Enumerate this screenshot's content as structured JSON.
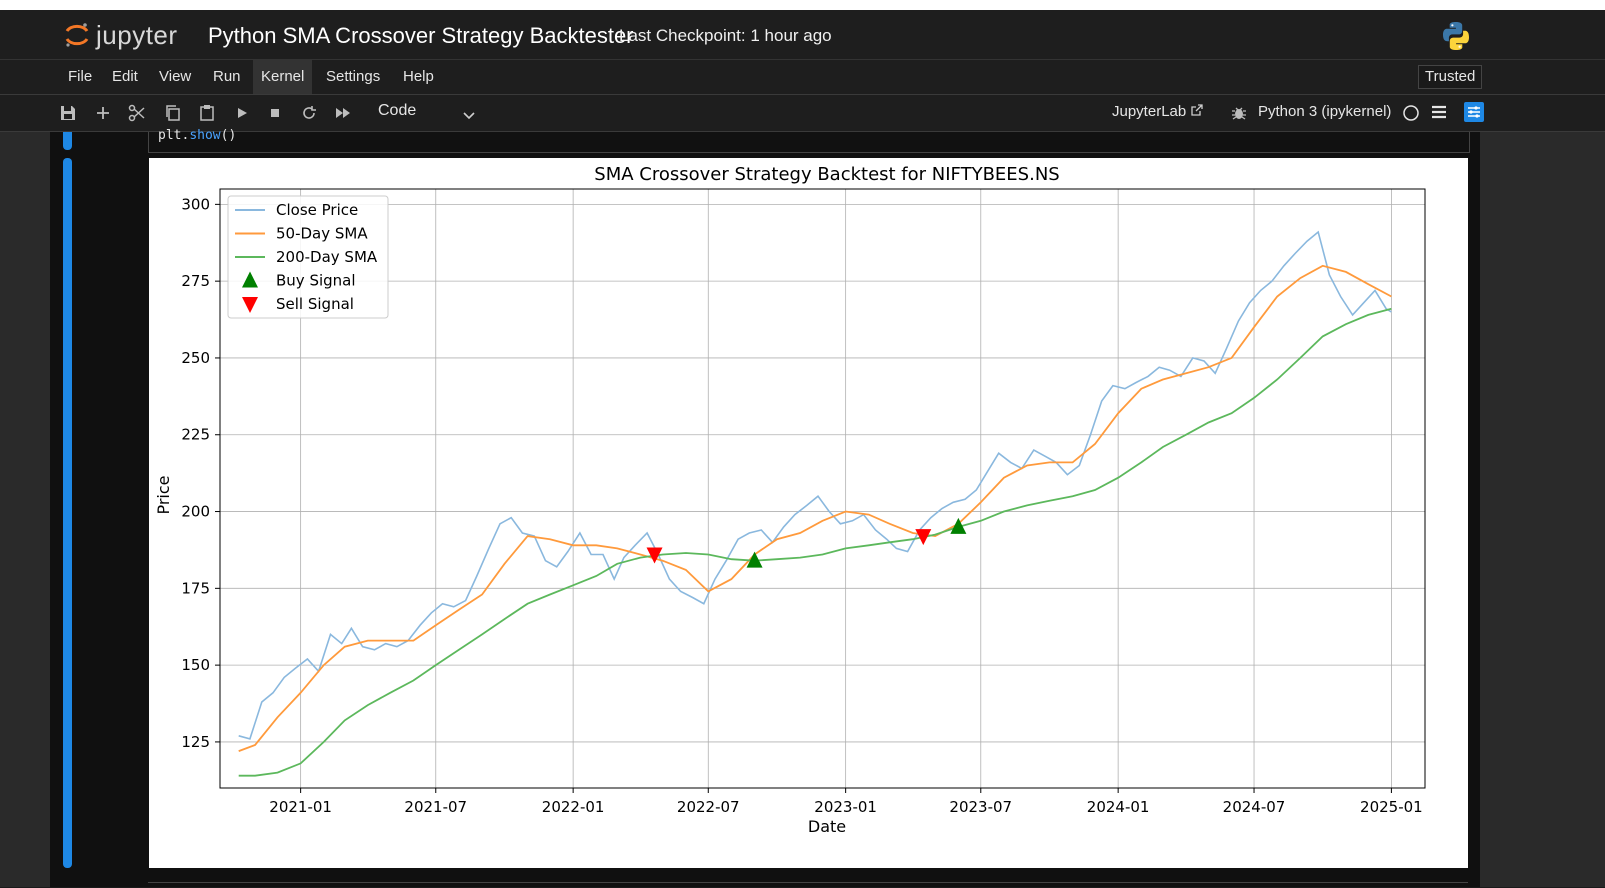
{
  "header": {
    "logo_text": "jupyter",
    "title": "Python SMA Crossover Strategy Backtester",
    "checkpoint": "Last Checkpoint: 1 hour ago"
  },
  "menu": {
    "items": [
      "File",
      "Edit",
      "View",
      "Run",
      "Kernel",
      "Settings",
      "Help"
    ],
    "active": "Kernel",
    "trusted": "Trusted"
  },
  "toolbar": {
    "icons": [
      "save-icon",
      "add-cell-icon",
      "cut-icon",
      "copy-icon",
      "paste-icon",
      "run-icon",
      "stop-icon",
      "restart-icon",
      "fast-forward-icon"
    ],
    "cell_type": "Code",
    "jupyterlab_label": "JupyterLab",
    "kernel_label": "Python 3 (ipykernel)"
  },
  "cell": {
    "code_obj": "plt.",
    "code_fn": "show",
    "code_tail": "()"
  },
  "chart_data": {
    "type": "line",
    "title": "SMA Crossover Strategy Backtest for NIFTYBEES.NS",
    "xlabel": "Date",
    "ylabel": "Price",
    "ylim": [
      110,
      305
    ],
    "yticks": [
      125,
      150,
      175,
      200,
      225,
      250,
      275,
      300
    ],
    "xticks": [
      "2021-01",
      "2021-07",
      "2022-01",
      "2022-07",
      "2023-01",
      "2023-07",
      "2024-01",
      "2024-07",
      "2025-01"
    ],
    "xlim": [
      "2020-09-15",
      "2025-02-15"
    ],
    "grid": true,
    "legend_position": "top-left",
    "colors": {
      "close": "#8ab8de",
      "sma50": "#ff9a3c",
      "sma200": "#5cb85c",
      "buy": "#008000",
      "sell": "#ff0000"
    },
    "series": [
      {
        "name": "Close Price",
        "points": [
          [
            "2020-10-10",
            127
          ],
          [
            "2020-10-25",
            126
          ],
          [
            "2020-11-10",
            138
          ],
          [
            "2020-11-25",
            141
          ],
          [
            "2020-12-10",
            146
          ],
          [
            "2020-12-25",
            149
          ],
          [
            "2021-01-10",
            152
          ],
          [
            "2021-01-25",
            148
          ],
          [
            "2021-02-10",
            160
          ],
          [
            "2021-02-25",
            157
          ],
          [
            "2021-03-10",
            162
          ],
          [
            "2021-03-25",
            156
          ],
          [
            "2021-04-10",
            155
          ],
          [
            "2021-04-25",
            157
          ],
          [
            "2021-05-10",
            156
          ],
          [
            "2021-05-25",
            158
          ],
          [
            "2021-06-10",
            163
          ],
          [
            "2021-06-25",
            167
          ],
          [
            "2021-07-10",
            170
          ],
          [
            "2021-07-25",
            169
          ],
          [
            "2021-08-10",
            171
          ],
          [
            "2021-08-25",
            179
          ],
          [
            "2021-09-10",
            188
          ],
          [
            "2021-09-25",
            196
          ],
          [
            "2021-10-10",
            198
          ],
          [
            "2021-10-25",
            193
          ],
          [
            "2021-11-10",
            192
          ],
          [
            "2021-11-25",
            184
          ],
          [
            "2021-12-10",
            182
          ],
          [
            "2021-12-25",
            187
          ],
          [
            "2022-01-10",
            193
          ],
          [
            "2022-01-25",
            186
          ],
          [
            "2022-02-10",
            186
          ],
          [
            "2022-02-25",
            178
          ],
          [
            "2022-03-10",
            185
          ],
          [
            "2022-03-25",
            189
          ],
          [
            "2022-04-10",
            193
          ],
          [
            "2022-04-25",
            186
          ],
          [
            "2022-05-10",
            178
          ],
          [
            "2022-05-25",
            174
          ],
          [
            "2022-06-10",
            172
          ],
          [
            "2022-06-25",
            170
          ],
          [
            "2022-07-10",
            178
          ],
          [
            "2022-07-25",
            184
          ],
          [
            "2022-08-10",
            191
          ],
          [
            "2022-08-25",
            193
          ],
          [
            "2022-09-10",
            194
          ],
          [
            "2022-09-25",
            190
          ],
          [
            "2022-10-10",
            195
          ],
          [
            "2022-10-25",
            199
          ],
          [
            "2022-11-10",
            202
          ],
          [
            "2022-11-25",
            205
          ],
          [
            "2022-12-10",
            200
          ],
          [
            "2022-12-25",
            196
          ],
          [
            "2023-01-10",
            197
          ],
          [
            "2023-01-25",
            199
          ],
          [
            "2023-02-10",
            194
          ],
          [
            "2023-02-25",
            191
          ],
          [
            "2023-03-10",
            188
          ],
          [
            "2023-03-25",
            187
          ],
          [
            "2023-04-10",
            194
          ],
          [
            "2023-04-25",
            198
          ],
          [
            "2023-05-10",
            201
          ],
          [
            "2023-05-25",
            203
          ],
          [
            "2023-06-10",
            204
          ],
          [
            "2023-06-25",
            207
          ],
          [
            "2023-07-10",
            213
          ],
          [
            "2023-07-25",
            219
          ],
          [
            "2023-08-10",
            216
          ],
          [
            "2023-08-25",
            214
          ],
          [
            "2023-09-10",
            220
          ],
          [
            "2023-09-25",
            218
          ],
          [
            "2023-10-10",
            216
          ],
          [
            "2023-10-25",
            212
          ],
          [
            "2023-11-10",
            215
          ],
          [
            "2023-11-25",
            225
          ],
          [
            "2023-12-10",
            236
          ],
          [
            "2023-12-25",
            241
          ],
          [
            "2024-01-10",
            240
          ],
          [
            "2024-01-25",
            242
          ],
          [
            "2024-02-10",
            244
          ],
          [
            "2024-02-25",
            247
          ],
          [
            "2024-03-10",
            246
          ],
          [
            "2024-03-25",
            244
          ],
          [
            "2024-04-10",
            250
          ],
          [
            "2024-04-25",
            249
          ],
          [
            "2024-05-10",
            245
          ],
          [
            "2024-05-25",
            253
          ],
          [
            "2024-06-10",
            262
          ],
          [
            "2024-06-25",
            268
          ],
          [
            "2024-07-10",
            272
          ],
          [
            "2024-07-25",
            275
          ],
          [
            "2024-08-10",
            280
          ],
          [
            "2024-08-25",
            284
          ],
          [
            "2024-09-10",
            288
          ],
          [
            "2024-09-25",
            291
          ],
          [
            "2024-10-10",
            277
          ],
          [
            "2024-10-25",
            270
          ],
          [
            "2024-11-10",
            264
          ],
          [
            "2024-11-25",
            268
          ],
          [
            "2024-12-10",
            272
          ],
          [
            "2024-12-25",
            266
          ],
          [
            "2025-01-01",
            265
          ]
        ]
      },
      {
        "name": "50-Day SMA",
        "points": [
          [
            "2020-10-10",
            122
          ],
          [
            "2020-11-01",
            124
          ],
          [
            "2020-12-01",
            133
          ],
          [
            "2021-01-01",
            141
          ],
          [
            "2021-02-01",
            150
          ],
          [
            "2021-03-01",
            156
          ],
          [
            "2021-04-01",
            158
          ],
          [
            "2021-05-01",
            158
          ],
          [
            "2021-06-01",
            158
          ],
          [
            "2021-07-01",
            163
          ],
          [
            "2021-08-01",
            168
          ],
          [
            "2021-09-01",
            173
          ],
          [
            "2021-10-01",
            183
          ],
          [
            "2021-11-01",
            192
          ],
          [
            "2021-12-01",
            191
          ],
          [
            "2022-01-01",
            189
          ],
          [
            "2022-02-01",
            189
          ],
          [
            "2022-03-01",
            188
          ],
          [
            "2022-04-01",
            186
          ],
          [
            "2022-05-01",
            184
          ],
          [
            "2022-06-01",
            181
          ],
          [
            "2022-07-01",
            174
          ],
          [
            "2022-08-01",
            178
          ],
          [
            "2022-09-01",
            186
          ],
          [
            "2022-10-01",
            191
          ],
          [
            "2022-11-01",
            193
          ],
          [
            "2022-12-01",
            197
          ],
          [
            "2023-01-01",
            200
          ],
          [
            "2023-02-01",
            199
          ],
          [
            "2023-03-01",
            196
          ],
          [
            "2023-04-01",
            193
          ],
          [
            "2023-05-01",
            192
          ],
          [
            "2023-06-01",
            196
          ],
          [
            "2023-07-01",
            203
          ],
          [
            "2023-08-01",
            211
          ],
          [
            "2023-09-01",
            215
          ],
          [
            "2023-10-01",
            216
          ],
          [
            "2023-11-01",
            216
          ],
          [
            "2023-12-01",
            222
          ],
          [
            "2024-01-01",
            232
          ],
          [
            "2024-02-01",
            240
          ],
          [
            "2024-03-01",
            243
          ],
          [
            "2024-04-01",
            245
          ],
          [
            "2024-05-01",
            247
          ],
          [
            "2024-06-01",
            250
          ],
          [
            "2024-07-01",
            260
          ],
          [
            "2024-08-01",
            270
          ],
          [
            "2024-09-01",
            276
          ],
          [
            "2024-10-01",
            280
          ],
          [
            "2024-11-01",
            278
          ],
          [
            "2024-12-01",
            274
          ],
          [
            "2025-01-01",
            270
          ]
        ]
      },
      {
        "name": "200-Day SMA",
        "points": [
          [
            "2020-10-10",
            114
          ],
          [
            "2020-11-01",
            114
          ],
          [
            "2020-12-01",
            115
          ],
          [
            "2021-01-01",
            118
          ],
          [
            "2021-02-01",
            125
          ],
          [
            "2021-03-01",
            132
          ],
          [
            "2021-04-01",
            137
          ],
          [
            "2021-05-01",
            141
          ],
          [
            "2021-06-01",
            145
          ],
          [
            "2021-07-01",
            150
          ],
          [
            "2021-08-01",
            155
          ],
          [
            "2021-09-01",
            160
          ],
          [
            "2021-10-01",
            165
          ],
          [
            "2021-11-01",
            170
          ],
          [
            "2021-12-01",
            173
          ],
          [
            "2022-01-01",
            176
          ],
          [
            "2022-02-01",
            179
          ],
          [
            "2022-03-01",
            183
          ],
          [
            "2022-04-01",
            185
          ],
          [
            "2022-05-01",
            186
          ],
          [
            "2022-06-01",
            186.5
          ],
          [
            "2022-07-01",
            186
          ],
          [
            "2022-08-01",
            184.5
          ],
          [
            "2022-09-01",
            184
          ],
          [
            "2022-10-01",
            184.5
          ],
          [
            "2022-11-01",
            185
          ],
          [
            "2022-12-01",
            186
          ],
          [
            "2023-01-01",
            188
          ],
          [
            "2023-02-01",
            189
          ],
          [
            "2023-03-01",
            190
          ],
          [
            "2023-04-01",
            191
          ],
          [
            "2023-05-01",
            192.5
          ],
          [
            "2023-06-01",
            195
          ],
          [
            "2023-07-01",
            197
          ],
          [
            "2023-08-01",
            200
          ],
          [
            "2023-09-01",
            202
          ],
          [
            "2023-10-01",
            203.5
          ],
          [
            "2023-11-01",
            205
          ],
          [
            "2023-12-01",
            207
          ],
          [
            "2024-01-01",
            211
          ],
          [
            "2024-02-01",
            216
          ],
          [
            "2024-03-01",
            221
          ],
          [
            "2024-04-01",
            225
          ],
          [
            "2024-05-01",
            229
          ],
          [
            "2024-06-01",
            232
          ],
          [
            "2024-07-01",
            237
          ],
          [
            "2024-08-01",
            243
          ],
          [
            "2024-09-01",
            250
          ],
          [
            "2024-10-01",
            257
          ],
          [
            "2024-11-01",
            261
          ],
          [
            "2024-12-01",
            264
          ],
          [
            "2025-01-01",
            266
          ]
        ]
      }
    ],
    "buy_signals": [
      [
        "2022-09-01",
        184
      ],
      [
        "2023-06-01",
        195
      ]
    ],
    "sell_signals": [
      [
        "2022-04-20",
        186
      ],
      [
        "2023-04-15",
        192
      ]
    ],
    "legend": [
      "Close Price",
      "50-Day SMA",
      "200-Day SMA",
      "Buy Signal",
      "Sell Signal"
    ]
  }
}
